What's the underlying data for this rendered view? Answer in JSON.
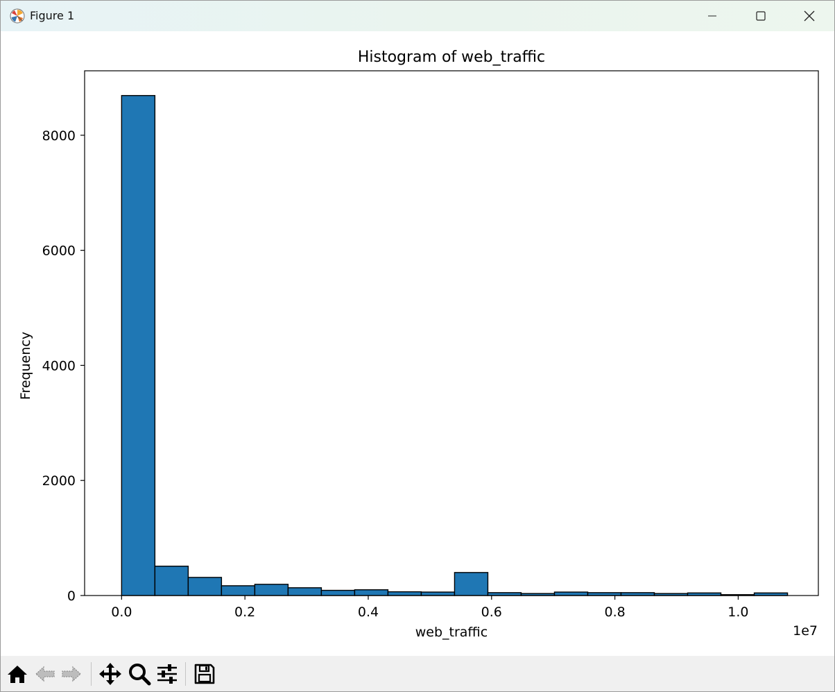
{
  "window": {
    "title": "Figure 1",
    "icons": [
      "matplotlib-logo-icon",
      "minimize-icon",
      "maximize-icon",
      "close-icon"
    ]
  },
  "toolbar": {
    "tools": [
      "home-icon",
      "back-arrow-icon",
      "forward-arrow-icon",
      "pan-icon",
      "zoom-icon",
      "configure-subplots-icon",
      "save-icon"
    ]
  },
  "chart_data": {
    "type": "bar",
    "title": "Histogram of web_traffic",
    "xlabel": "web_traffic",
    "ylabel": "Frequency",
    "x_offset_label": "1e7",
    "xlim": [
      -0.06,
      1.13
    ],
    "ylim": [
      0,
      9120
    ],
    "bin_edges": [
      0.0,
      0.054,
      0.108,
      0.162,
      0.216,
      0.27,
      0.324,
      0.378,
      0.432,
      0.486,
      0.54,
      0.594,
      0.648,
      0.702,
      0.756,
      0.81,
      0.864,
      0.918,
      0.972,
      1.026,
      1.08
    ],
    "values": [
      8690,
      510,
      315,
      170,
      195,
      135,
      90,
      100,
      65,
      60,
      400,
      50,
      35,
      60,
      50,
      50,
      35,
      45,
      15,
      45
    ],
    "x_ticks": [
      0.0,
      0.2,
      0.4,
      0.6,
      0.8,
      1.0
    ],
    "x_tick_labels": [
      "0.0",
      "0.2",
      "0.4",
      "0.6",
      "0.8",
      "1.0"
    ],
    "y_ticks": [
      0,
      2000,
      4000,
      6000,
      8000
    ],
    "y_tick_labels": [
      "0",
      "2000",
      "4000",
      "6000",
      "8000"
    ],
    "bar_color": "#1f77b4",
    "edge_color": "#000000",
    "grid": false,
    "legend": "none"
  }
}
